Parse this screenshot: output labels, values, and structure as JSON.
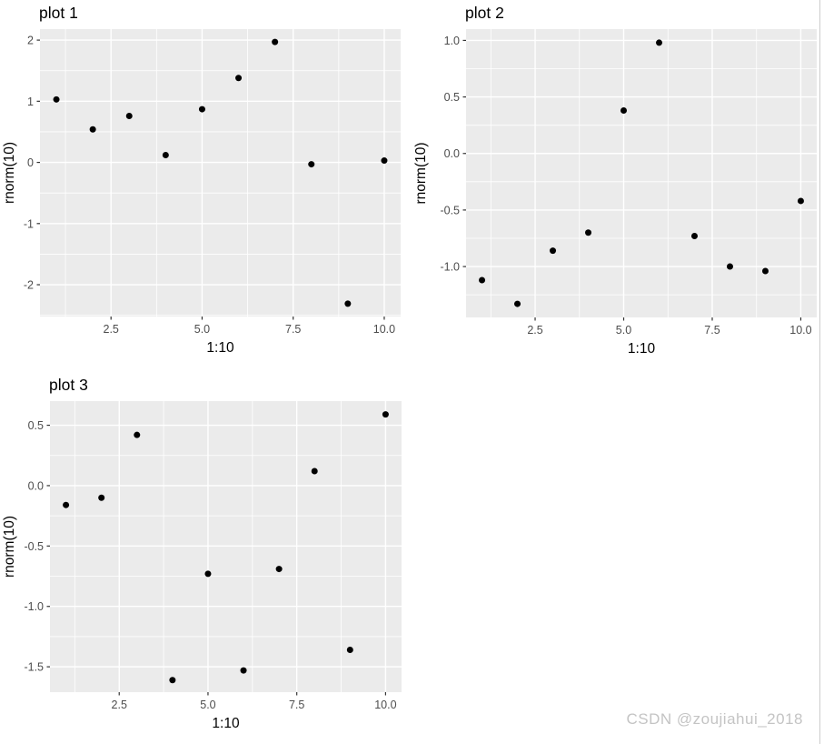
{
  "watermark": {
    "text": "CSDN @zoujiahui_2018",
    "color": "#c4c4c4"
  },
  "colors": {
    "background": "#ffffff",
    "panel_bg": "#ebebeb",
    "grid": "#ffffff",
    "point": "#000000",
    "tick_mark": "#333333",
    "tick_label": "#4d4d4d",
    "title": "#000000",
    "axis_title": "#000000",
    "right_border": "#cccccc"
  },
  "chart_data": [
    {
      "type": "scatter",
      "title": "plot 1",
      "xlabel": "1:10",
      "ylabel": "rnorm(10)",
      "x": [
        1,
        2,
        3,
        4,
        5,
        6,
        7,
        8,
        9,
        10
      ],
      "y": [
        1.03,
        0.54,
        0.76,
        0.12,
        0.87,
        1.38,
        1.97,
        -0.03,
        -2.31,
        0.03
      ],
      "xlim": [
        0.55,
        10.45
      ],
      "ylim": [
        -2.52,
        2.18
      ],
      "x_tick_values": [
        2.5,
        5,
        7.5,
        10
      ],
      "x_tick_labels": [
        "2.5",
        "5.0",
        "7.5",
        "10.0"
      ],
      "y_tick_values": [
        2,
        1,
        0,
        -1,
        -2
      ],
      "y_tick_labels": [
        "2",
        "1",
        "0",
        "-1",
        "-2"
      ],
      "grid": true,
      "legend": "none"
    },
    {
      "type": "scatter",
      "title": "plot 2",
      "xlabel": "1:10",
      "ylabel": "rnorm(10)",
      "x": [
        1,
        2,
        3,
        4,
        5,
        6,
        7,
        8,
        9,
        10
      ],
      "y": [
        -1.12,
        -1.33,
        -0.86,
        -0.7,
        0.38,
        0.98,
        -0.73,
        -1.0,
        -1.04,
        -0.42
      ],
      "xlim": [
        0.55,
        10.45
      ],
      "ylim": [
        -1.45,
        1.1
      ],
      "x_tick_values": [
        2.5,
        5,
        7.5,
        10
      ],
      "x_tick_labels": [
        "2.5",
        "5.0",
        "7.5",
        "10.0"
      ],
      "y_tick_values": [
        1.0,
        0.5,
        0.0,
        -0.5,
        -1.0
      ],
      "y_tick_labels": [
        "1.0",
        "0.5",
        "0.0",
        "-0.5",
        "-1.0"
      ],
      "grid": true,
      "legend": "none"
    },
    {
      "type": "scatter",
      "title": "plot 3",
      "xlabel": "1:10",
      "ylabel": "rnorm(10)",
      "x": [
        1,
        2,
        3,
        4,
        5,
        6,
        7,
        8,
        9,
        10
      ],
      "y": [
        -0.16,
        -0.1,
        0.42,
        -1.61,
        -0.73,
        -1.53,
        -0.69,
        0.12,
        -1.36,
        0.59
      ],
      "xlim": [
        0.55,
        10.45
      ],
      "ylim": [
        -1.71,
        0.7
      ],
      "x_tick_values": [
        2.5,
        5,
        7.5,
        10
      ],
      "x_tick_labels": [
        "2.5",
        "5.0",
        "7.5",
        "10.0"
      ],
      "y_tick_values": [
        0.5,
        0.0,
        -0.5,
        -1.0,
        -1.5
      ],
      "y_tick_labels": [
        "0.5",
        "0.0",
        "-0.5",
        "-1.0",
        "-1.5"
      ],
      "grid": true,
      "legend": "none"
    }
  ]
}
